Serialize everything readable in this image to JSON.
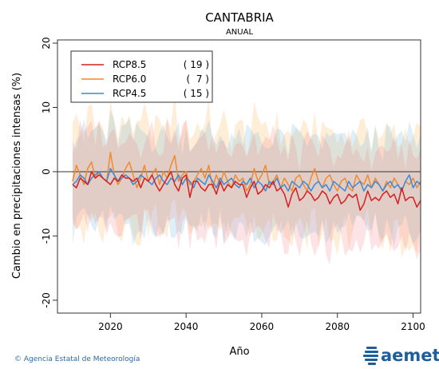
{
  "chart_data": {
    "type": "line",
    "title": "CANTABRIA",
    "subtitle": "ANUAL",
    "xlabel": "Año",
    "ylabel": "Cambio en precipitaciones intensas (%)",
    "xlim": [
      2006,
      2102
    ],
    "ylim": [
      -22,
      20.5
    ],
    "xticks": [
      2020,
      2040,
      2060,
      2080,
      2100
    ],
    "yticks": [
      -20,
      -10,
      0,
      10,
      20
    ],
    "legend_position": "top-left",
    "series": [
      {
        "name": "RCP8.5",
        "count": "( 19 )",
        "color": "#d42020",
        "start_year": 2010,
        "values": [
          -2.0,
          -2.5,
          -1.0,
          -1.5,
          -2.0,
          0.0,
          -1.0,
          -0.5,
          -1.0,
          -1.5,
          -2.0,
          -1.0,
          -1.5,
          -0.5,
          -1.0,
          -1.0,
          -1.5,
          -1.0,
          -2.5,
          -1.0,
          -1.5,
          -0.5,
          -2.0,
          -3.0,
          -2.0,
          -1.0,
          0.0,
          -2.0,
          -3.0,
          -1.0,
          -0.5,
          -4.0,
          -1.5,
          -1.5,
          -2.5,
          -3.0,
          -2.0,
          -2.0,
          -3.5,
          -1.5,
          -3.0,
          -2.0,
          -2.5,
          -1.5,
          -2.0,
          -2.0,
          -4.0,
          -2.5,
          -1.5,
          -3.5,
          -3.0,
          -2.0,
          -2.5,
          -1.5,
          -3.0,
          -2.5,
          -3.5,
          -5.5,
          -3.5,
          -2.5,
          -4.5,
          -4.0,
          -3.0,
          -3.5,
          -4.5,
          -4.0,
          -3.0,
          -3.5,
          -5.0,
          -4.0,
          -3.5,
          -5.0,
          -4.5,
          -3.5,
          -4.0,
          -3.5,
          -6.0,
          -5.0,
          -3.0,
          -4.5,
          -4.0,
          -4.5,
          -3.5,
          -3.0,
          -4.0,
          -3.5,
          -5.0,
          -2.5,
          -4.5,
          -4.0,
          -4.0,
          -5.5,
          -4.5
        ]
      },
      {
        "name": "RCP6.0",
        "count": "(  7 )",
        "color": "#f08a30",
        "start_year": 2010,
        "values": [
          -1.5,
          1.0,
          -0.5,
          -2.0,
          0.5,
          1.5,
          -1.0,
          0.0,
          -1.0,
          -1.5,
          3.0,
          -0.5,
          -2.0,
          -1.0,
          0.5,
          1.5,
          -0.5,
          -2.5,
          -1.0,
          1.0,
          -1.5,
          -0.5,
          0.5,
          -2.0,
          0.0,
          -1.0,
          1.0,
          2.5,
          -1.5,
          -0.5,
          0.0,
          -2.0,
          -1.5,
          -0.5,
          0.5,
          -1.0,
          1.0,
          -2.5,
          -0.5,
          -2.0,
          0.0,
          -1.5,
          -2.5,
          -0.5,
          -1.5,
          -1.0,
          -3.0,
          -2.0,
          0.5,
          -1.5,
          -0.5,
          1.0,
          -2.0,
          -1.5,
          -0.5,
          -2.5,
          -1.0,
          -2.0,
          -3.0,
          -1.0,
          -0.5,
          -2.0,
          -3.0,
          -1.0,
          0.5,
          -1.5,
          -2.5,
          -1.0,
          -0.5,
          -2.0,
          -3.0,
          -1.5,
          -1.0,
          -2.5,
          -3.0,
          -0.5,
          -1.5,
          -2.0,
          -0.5,
          -2.5,
          -1.0,
          -2.0,
          -3.0,
          -1.5,
          -2.5,
          -1.0,
          -2.0,
          -3.0,
          -1.5,
          -2.0,
          -1.0,
          -2.5,
          -1.5
        ]
      },
      {
        "name": "RCP4.5",
        "count": "( 15 )",
        "color": "#3a8ad8",
        "start_year": 2010,
        "values": [
          -2.0,
          -1.5,
          -0.5,
          -1.0,
          -2.0,
          -1.0,
          -0.5,
          0.0,
          -1.0,
          -1.5,
          0.5,
          -0.5,
          -1.5,
          -1.0,
          -0.5,
          -1.0,
          -2.0,
          -1.5,
          -0.5,
          -1.0,
          -1.5,
          -2.0,
          -1.0,
          -0.5,
          -1.5,
          -2.0,
          -1.0,
          -1.5,
          -0.5,
          -2.0,
          -1.0,
          -1.5,
          -2.5,
          -1.0,
          -1.5,
          -2.0,
          -0.5,
          -1.5,
          -2.5,
          -1.0,
          -2.0,
          -1.5,
          -1.0,
          -2.0,
          -2.5,
          -1.5,
          -2.0,
          -1.0,
          -2.5,
          -1.5,
          -2.0,
          -3.0,
          -1.5,
          -2.0,
          -1.0,
          -2.5,
          -2.0,
          -3.0,
          -1.5,
          -2.0,
          -2.5,
          -1.5,
          -2.0,
          -3.0,
          -2.0,
          -1.5,
          -2.5,
          -2.0,
          -3.0,
          -1.5,
          -2.0,
          -2.5,
          -3.0,
          -1.5,
          -2.5,
          -2.0,
          -1.5,
          -3.0,
          -2.0,
          -2.5,
          -1.5,
          -2.0,
          -3.0,
          -2.0,
          -1.5,
          -2.5,
          -2.0,
          -3.0,
          -1.5,
          -0.5,
          -2.5,
          -1.5,
          -2.0
        ]
      }
    ]
  },
  "footer": {
    "credit": "© Agencia Estatal de Meteorología",
    "logo_text": "aemet"
  }
}
